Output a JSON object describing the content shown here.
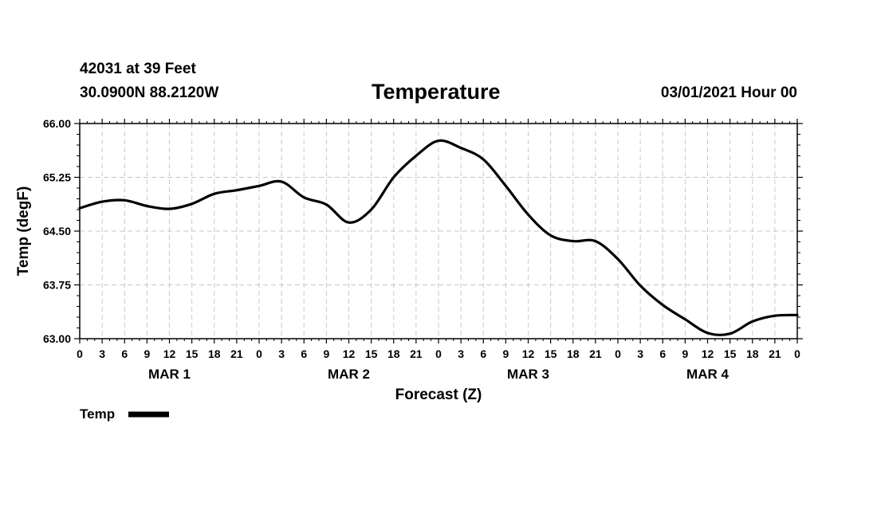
{
  "header": {
    "station": "42031 at 39 Feet",
    "coords": "30.0900N 88.2120W",
    "run": "03/01/2021 Hour 00"
  },
  "chart_data": {
    "type": "line",
    "title": "Temperature",
    "xlabel": "Forecast (Z)",
    "ylabel": "Temp (degF)",
    "ylim": [
      63.0,
      66.0
    ],
    "xlim": [
      0,
      96
    ],
    "y_ticks": [
      "63.00",
      "63.75",
      "64.50",
      "65.25",
      "66.00"
    ],
    "x_tick_labels": [
      "0",
      "3",
      "6",
      "9",
      "12",
      "15",
      "18",
      "21",
      "0",
      "3",
      "6",
      "9",
      "12",
      "15",
      "18",
      "21",
      "0",
      "3",
      "6",
      "9",
      "12",
      "15",
      "18",
      "21",
      "0",
      "3",
      "6",
      "9",
      "12",
      "15",
      "18",
      "21",
      "0"
    ],
    "day_labels": [
      "MAR 1",
      "MAR 2",
      "MAR 3",
      "MAR 4"
    ],
    "grid": true,
    "legend": "bottom-left",
    "series": [
      {
        "name": "Temp",
        "color": "#000000",
        "x": [
          0,
          3,
          6,
          9,
          12,
          15,
          18,
          21,
          24,
          27,
          30,
          33,
          36,
          39,
          42,
          45,
          48,
          51,
          54,
          57,
          60,
          63,
          66,
          69,
          72,
          75,
          78,
          81,
          84,
          87,
          90,
          93,
          96
        ],
        "values": [
          64.82,
          64.91,
          64.93,
          64.85,
          64.81,
          64.88,
          65.02,
          65.07,
          65.13,
          65.19,
          64.97,
          64.87,
          64.62,
          64.8,
          65.25,
          65.55,
          65.76,
          65.66,
          65.5,
          65.13,
          64.73,
          64.44,
          64.36,
          64.36,
          64.11,
          63.74,
          63.47,
          63.27,
          63.08,
          63.07,
          63.24,
          63.32,
          63.33
        ]
      }
    ]
  }
}
